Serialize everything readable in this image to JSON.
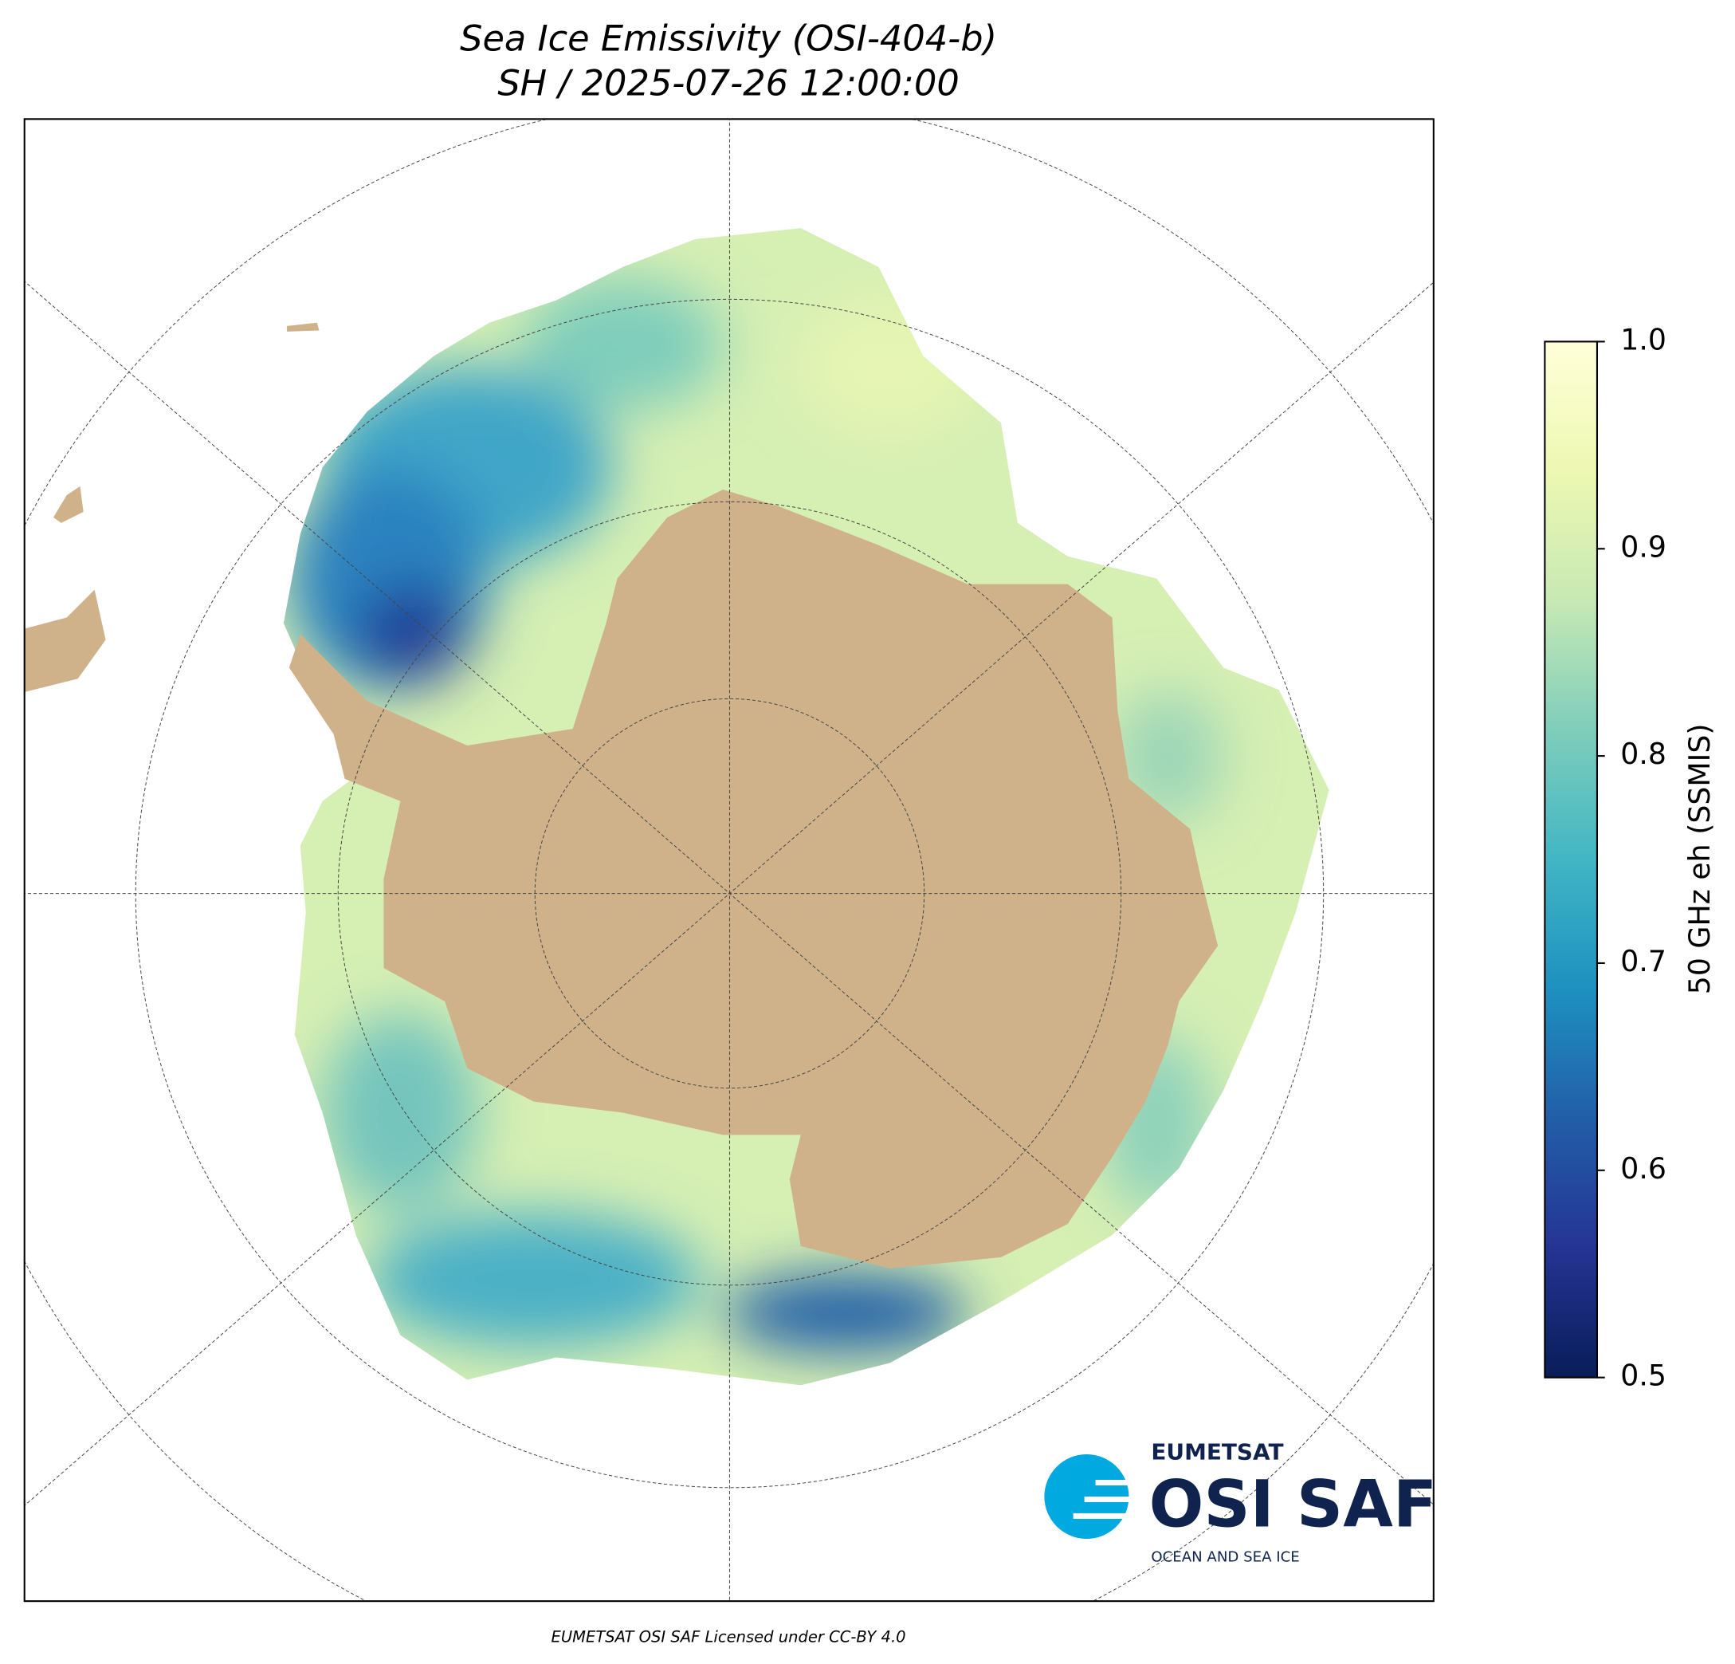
{
  "title": "Sea Ice Emissivity (OSI-404-b)",
  "subtitle": "SH / 2025-07-26 12:00:00",
  "colorbar": {
    "label": "50 GHz eh (SSMIS)",
    "lim": [
      0.5,
      1.0
    ],
    "ticks": [
      0.5,
      0.6,
      0.7,
      0.8,
      0.9,
      {
        "value": 1.0,
        "label": "1.0"
      }
    ],
    "colors": [
      "#081d58",
      "#253494",
      "#225ea8",
      "#1d91c0",
      "#41b6c4",
      "#7fcdbb",
      "#c7e9b4",
      "#edf8b1",
      "#ffffd9"
    ]
  },
  "logo": {
    "top": "EUMETSAT",
    "name": "OSI SAF",
    "tagline": "OCEAN AND SEA ICE"
  },
  "footer": "EUMETSAT OSI SAF Licensed under CC-BY 4.0"
}
